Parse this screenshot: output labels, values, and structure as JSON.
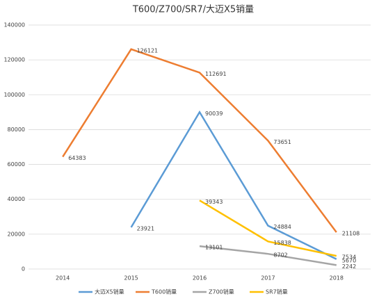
{
  "chart_data": {
    "type": "line",
    "title": "T600/Z700/SR7/大迈X5销量",
    "categories": [
      "2014",
      "2015",
      "2016",
      "2017",
      "2018"
    ],
    "series": [
      {
        "name": "大迈X5销量",
        "color": "#5b9bd5",
        "values": [
          null,
          23921,
          90039,
          24884,
          5670
        ]
      },
      {
        "name": "T600销量",
        "color": "#ed7d31",
        "values": [
          64383,
          126121,
          112691,
          73651,
          21108
        ]
      },
      {
        "name": "Z700销量",
        "color": "#a5a5a5",
        "values": [
          null,
          null,
          13101,
          8702,
          2242
        ]
      },
      {
        "name": "SR7销量",
        "color": "#ffc000",
        "values": [
          null,
          null,
          39343,
          15838,
          7534
        ]
      }
    ],
    "ylim": [
      0,
      140000
    ],
    "yticks": [
      0,
      20000,
      40000,
      60000,
      80000,
      100000,
      120000,
      140000
    ],
    "grid": true,
    "legend": "bottom"
  }
}
